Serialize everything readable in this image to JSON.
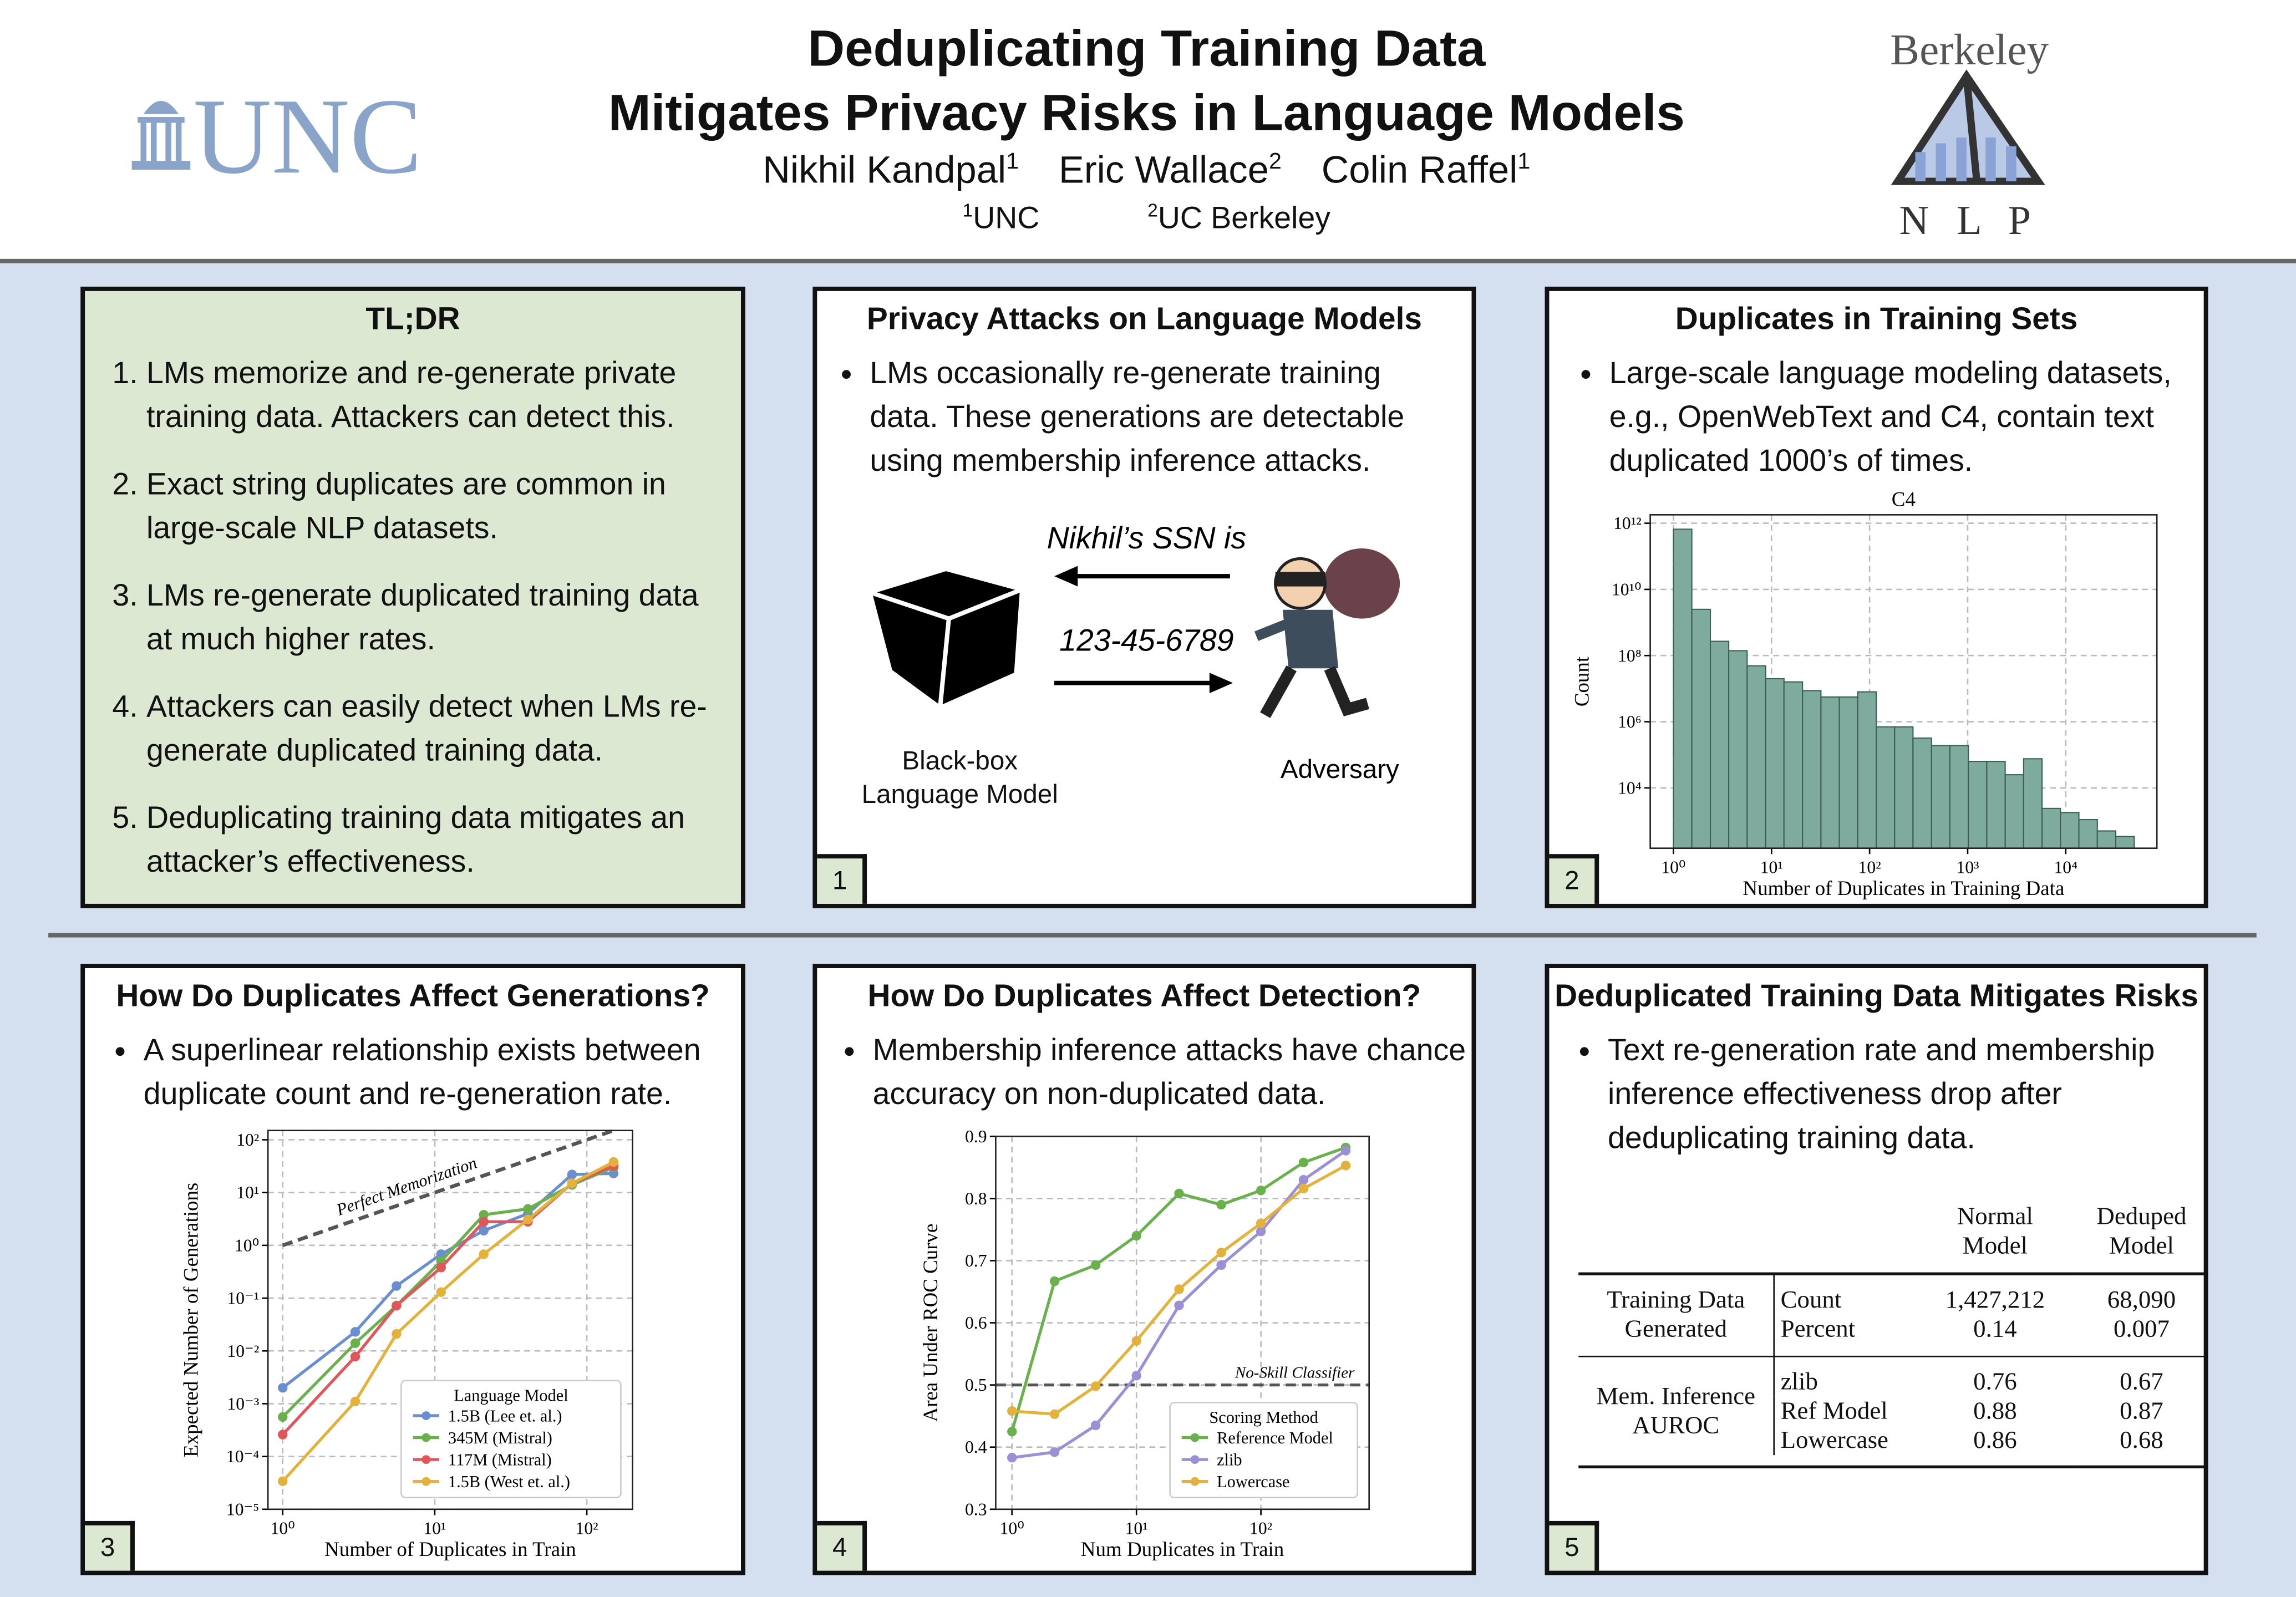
{
  "header": {
    "title": [
      "Deduplicating Training Data",
      "Mitigates Privacy Risks in Language Models"
    ],
    "authors": [
      {
        "name": "Nikhil Kandpal",
        "affiliation": "1"
      },
      {
        "name": "Eric Wallace",
        "affiliation": "2"
      },
      {
        "name": "Colin Raffel",
        "affiliation": "1"
      }
    ],
    "affiliations": [
      {
        "mark": "1",
        "name": "UNC"
      },
      {
        "mark": "2",
        "name": "UC Berkeley"
      }
    ]
  },
  "logos": {
    "left": "UNC",
    "right_top": "Berkeley",
    "right_bottom": "N L P"
  },
  "tldr": {
    "title": "TL;DR",
    "items": [
      "LMs memorize and re-generate private training data. Attackers can detect this.",
      "Exact string duplicates are common in large-scale NLP datasets.",
      "LMs re-generate duplicated training data at much higher rates.",
      "Attackers can easily detect when LMs re-generate duplicated training data.",
      "Deduplicating training data mitigates an attacker’s effectiveness."
    ]
  },
  "panels": [
    {
      "number": "1",
      "title": "Privacy Attacks on Language Models",
      "bullets": [
        "LMs occasionally re-generate training data. These generations are detectable using membership inference attacks."
      ]
    },
    {
      "number": "2",
      "title": "Duplicates in Training Sets",
      "bullets": [
        "Large-scale language modeling datasets, e.g., OpenWebText and C4, contain text duplicated 1000’s of times."
      ]
    },
    {
      "number": "3",
      "title": "How Do Duplicates Affect Generations?",
      "bullets": [
        "A superlinear relationship exists between duplicate count and re-generation rate."
      ]
    },
    {
      "number": "4",
      "title": "How Do Duplicates Affect Detection?",
      "bullets": [
        "Membership inference attacks have chance accuracy on non-duplicated data."
      ]
    },
    {
      "number": "5",
      "title": "Deduplicated Training Data Mitigates Risks",
      "bullets": [
        "Text re-generation rate and membership inference effectiveness drop after deduplicating training data."
      ]
    }
  ],
  "diagram": {
    "prompt": "Nikhil’s SSN is",
    "response": "123-45-6789",
    "model": "Black-box Language Model",
    "adversary": "Adversary"
  },
  "table": {
    "columns": [
      "Normal Model",
      "Deduped Model"
    ],
    "groups": [
      {
        "label": "Training Data Generated",
        "rows": [
          {
            "metric": "Count",
            "values": [
              "1,427,212",
              "68,090"
            ]
          },
          {
            "metric": "Percent",
            "values": [
              "0.14",
              "0.007"
            ]
          }
        ]
      },
      {
        "label": "Mem. Inference AUROC",
        "rows": [
          {
            "metric": "zlib",
            "values": [
              "0.76",
              "0.67"
            ]
          },
          {
            "metric": "Ref Model",
            "values": [
              "0.88",
              "0.87"
            ]
          },
          {
            "metric": "Lowercase",
            "values": [
              "0.86",
              "0.68"
            ]
          }
        ]
      }
    ]
  },
  "chart_data": [
    {
      "type": "histogram",
      "title": "C4",
      "x_label": "Number of Duplicates in Training Data",
      "y_label": "Count",
      "xscale": "log",
      "yscale": "log",
      "grid": true,
      "color": "#7fab9f",
      "bins": [
        1,
        1.54,
        2.38,
        3.66,
        5.64,
        8.71,
        13.4,
        20.7,
        31.9,
        49.1,
        75.7,
        117,
        180,
        277,
        428,
        659,
        1016,
        1566,
        2413,
        3720,
        5734,
        8838,
        13620,
        20990,
        32360,
        49880
      ],
      "values": [
        660000000000.0,
        2500000000.0,
        270000000.0,
        140000000.0,
        49000000.0,
        20000000.0,
        16000000.0,
        8700000.0,
        5600000.0,
        5600000.0,
        8000000.0,
        700000.0,
        700000.0,
        320000.0,
        190000.0,
        190000.0,
        63000.0,
        63000.0,
        25000.0,
        76000.0,
        2400,
        1800,
        1100,
        500,
        340
      ],
      "xlim": [
        0.58,
        85000
      ],
      "ylim": [
        150,
        1800000000000.0
      ],
      "xticks": [
        {
          "value": 1,
          "label": "10⁰"
        },
        {
          "value": 10,
          "label": "10¹"
        },
        {
          "value": 100,
          "label": "10²"
        },
        {
          "value": 1000,
          "label": "10³"
        },
        {
          "value": 10000,
          "label": "10⁴"
        }
      ],
      "yticks": [
        {
          "value": 10000,
          "label": "10⁴"
        },
        {
          "value": 1000000,
          "label": "10⁶"
        },
        {
          "value": 100000000,
          "label": "10⁸"
        },
        {
          "value": 10000000000,
          "label": "10¹⁰"
        },
        {
          "value": 1000000000000,
          "label": "10¹²"
        }
      ]
    },
    {
      "type": "line",
      "x_label": "Number of Duplicates in Train",
      "y_label": "Expected Number of Generations",
      "xscale": "log",
      "yscale": "log",
      "grid": true,
      "legend": "lower right",
      "legend_title": "Language Model",
      "x": [
        1,
        3,
        5.6,
        11,
        21,
        41,
        80,
        150
      ],
      "series": [
        {
          "name": "1.5B (Lee et. al.)",
          "color": "#6a8fd0",
          "values": [
            0.002,
            0.023,
            0.17,
            0.68,
            1.9,
            4,
            22,
            23
          ]
        },
        {
          "name": "345M (Mistral)",
          "color": "#6ab04c",
          "values": [
            0.00056,
            0.014,
            0.072,
            0.5,
            3.8,
            4.9,
            14,
            30
          ]
        },
        {
          "name": "117M (Mistral)",
          "color": "#e0575b",
          "values": [
            0.00026,
            0.0078,
            0.072,
            0.38,
            2.8,
            2.8,
            15,
            32
          ]
        },
        {
          "name": "1.5B (West et. al.)",
          "color": "#e3b23c",
          "values": [
            3.4e-05,
            0.0011,
            0.021,
            0.13,
            0.68,
            3.1,
            15,
            38
          ]
        }
      ],
      "reference_line": {
        "label": "Perfect Memorization",
        "x": [
          1,
          150
        ],
        "values": [
          1,
          150
        ]
      },
      "xlim": [
        0.8,
        200
      ],
      "ylim": [
        1e-05,
        150
      ],
      "xticks": [
        {
          "value": 1,
          "label": "10⁰"
        },
        {
          "value": 10,
          "label": "10¹"
        },
        {
          "value": 100,
          "label": "10²"
        }
      ],
      "yticks": [
        {
          "value": 1e-05,
          "label": "10⁻⁵"
        },
        {
          "value": 0.0001,
          "label": "10⁻⁴"
        },
        {
          "value": 0.001,
          "label": "10⁻³"
        },
        {
          "value": 0.01,
          "label": "10⁻²"
        },
        {
          "value": 0.1,
          "label": "10⁻¹"
        },
        {
          "value": 1,
          "label": "10⁰"
        },
        {
          "value": 10,
          "label": "10¹"
        },
        {
          "value": 100,
          "label": "10²"
        }
      ]
    },
    {
      "type": "line",
      "x_label": "Num Duplicates in Train",
      "y_label": "Area Under ROC Curve",
      "xscale": "log",
      "yscale": "linear",
      "grid": true,
      "legend": "lower right",
      "legend_title": "Scoring Method",
      "x": [
        1,
        2.2,
        4.7,
        10,
        22,
        48,
        100,
        220,
        480
      ],
      "series": [
        {
          "name": "Reference Model",
          "color": "#6ab04c",
          "values": [
            0.425,
            0.667,
            0.693,
            0.74,
            0.808,
            0.79,
            0.813,
            0.858,
            0.882
          ]
        },
        {
          "name": "zlib",
          "color": "#9b8fd6",
          "values": [
            0.383,
            0.392,
            0.435,
            0.515,
            0.628,
            0.693,
            0.747,
            0.83,
            0.877
          ]
        },
        {
          "name": "Lowercase",
          "color": "#e3b23c",
          "values": [
            0.458,
            0.453,
            0.498,
            0.571,
            0.654,
            0.713,
            0.76,
            0.816,
            0.853
          ]
        }
      ],
      "reference_line": {
        "label": "No-Skill Classifier",
        "value": 0.5
      },
      "xlim": [
        0.74,
        740
      ],
      "ylim": [
        0.3,
        0.9
      ],
      "xticks": [
        {
          "value": 1,
          "label": "10⁰"
        },
        {
          "value": 10,
          "label": "10¹"
        },
        {
          "value": 100,
          "label": "10²"
        }
      ],
      "yticks": [
        0.3,
        0.4,
        0.5,
        0.6,
        0.7,
        0.8,
        0.9
      ]
    }
  ]
}
